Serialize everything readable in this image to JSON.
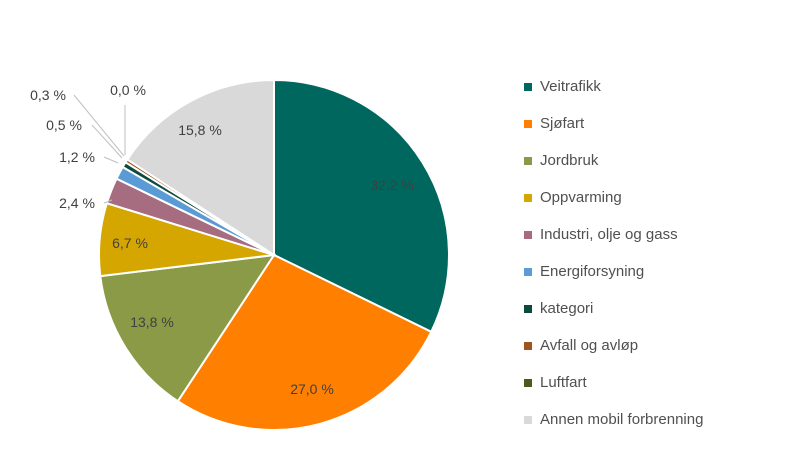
{
  "chart_data": {
    "type": "pie",
    "title": "",
    "start_angle": "top, clockwise",
    "legend_position": "right",
    "slices": [
      {
        "name": "Veitrafikk",
        "value": 32.2,
        "label": "32,2 %",
        "color": "#00675F"
      },
      {
        "name": "Sjøfart",
        "value": 27.0,
        "label": "27,0 %",
        "color": "#FF8000"
      },
      {
        "name": "Jordbruk",
        "value": 13.8,
        "label": "13,8 %",
        "color": "#8A9A46"
      },
      {
        "name": "Oppvarming",
        "value": 6.7,
        "label": "6,7 %",
        "color": "#D6A600"
      },
      {
        "name": "Industri, olje og gass",
        "value": 2.4,
        "label": "2,4 %",
        "color": "#A66C7F"
      },
      {
        "name": "Energiforsyning",
        "value": 1.2,
        "label": "1,2 %",
        "color": "#5B9BD5"
      },
      {
        "name": "kategori",
        "value": 0.5,
        "label": "0,5 %",
        "color": "#0B4A3E"
      },
      {
        "name": "Avfall og avløp",
        "value": 0.3,
        "label": "0,3 %",
        "color": "#A0521F"
      },
      {
        "name": "Luftfart",
        "value": 0.0,
        "label": "0,0 %",
        "color": "#4A5A23"
      },
      {
        "name": "Annen mobil forbrenning",
        "value": 15.8,
        "label": "15,8 %",
        "color": "#D9D9D9"
      }
    ]
  }
}
